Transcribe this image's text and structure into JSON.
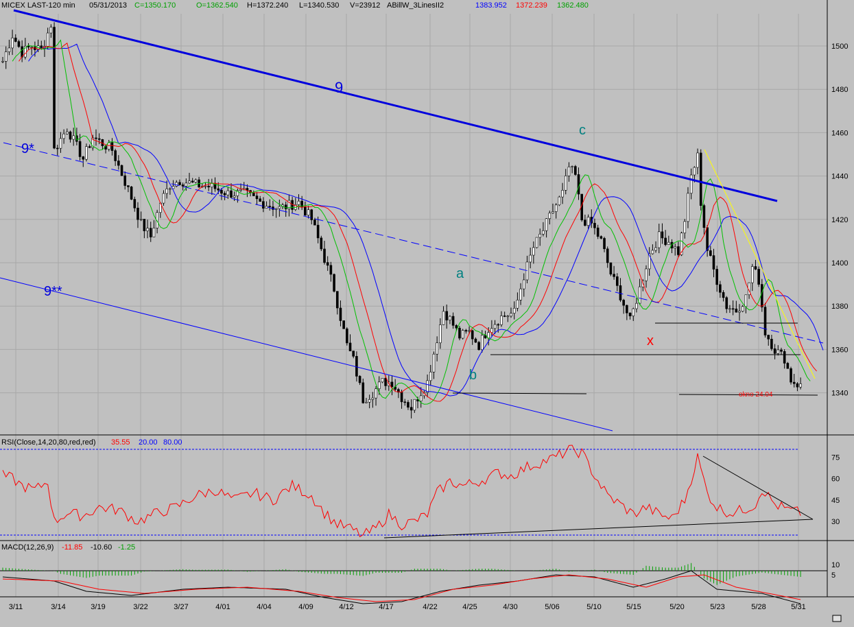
{
  "header": {
    "symbol": "MICEX LAST-120 min",
    "date": "05/31/2013",
    "close": "C=1350.170",
    "open": "O=1362.540",
    "high": "H=1372.240",
    "low": "L=1340.530",
    "volume": "V=23912",
    "indicator": "ABillW_3LinesII2",
    "line_blue": "1383.952",
    "line_red": "1372.239",
    "line_green": "1362.480"
  },
  "rsi_header": {
    "label": "RSI(Close,14,20,80,red,red)",
    "value": "35.55",
    "low": "20.00",
    "high": "80.00"
  },
  "macd_header": {
    "label": "MACD(12,26,9)",
    "macd": "-11.85",
    "signal": "-10.60",
    "hist": "-1.25"
  },
  "annotations": {
    "l9": "9",
    "l9s": "9*",
    "l9ss": "9**",
    "a": "a",
    "b": "b",
    "c": "c",
    "x": "x",
    "okno": "okno 24.04"
  },
  "colors": {
    "background": "#c0c0c0",
    "candles": "#000000",
    "line_blue": "#0000ff",
    "line_red": "#ff0000",
    "line_green": "#00c000",
    "rsi": "#ff0000",
    "grid": "#9a9a9a",
    "trend_main": "#0000dd",
    "yellow_trend": "#ffff00",
    "label_teal": "#008080"
  },
  "chart_data": [
    {
      "type": "candlestick",
      "title": "MICEX LAST-120 min",
      "ylim": [
        1320,
        1512
      ],
      "y_ticks": [
        1340,
        1360,
        1380,
        1400,
        1420,
        1440,
        1460,
        1480,
        1500
      ],
      "x_ticks": [
        "3/11",
        "3/14",
        "3/19",
        "3/22",
        "3/27",
        "4/01",
        "4/04",
        "4/09",
        "4/12",
        "4/17",
        "4/22",
        "4/25",
        "4/30",
        "5/06",
        "5/10",
        "5/15",
        "5/20",
        "5/23",
        "5/28",
        "5/31"
      ],
      "close_path": [
        [
          0,
          1493
        ],
        [
          3,
          1505
        ],
        [
          6,
          1497
        ],
        [
          9,
          1500
        ],
        [
          12,
          1498
        ],
        [
          15,
          1510
        ],
        [
          16,
          1452
        ],
        [
          20,
          1462
        ],
        [
          25,
          1448
        ],
        [
          28,
          1458
        ],
        [
          34,
          1452
        ],
        [
          40,
          1430
        ],
        [
          43,
          1418
        ],
        [
          46,
          1412
        ],
        [
          49,
          1428
        ],
        [
          52,
          1436
        ],
        [
          55,
          1438
        ],
        [
          60,
          1436
        ],
        [
          65,
          1435
        ],
        [
          70,
          1432
        ],
        [
          75,
          1432
        ],
        [
          80,
          1428
        ],
        [
          86,
          1425
        ],
        [
          92,
          1428
        ],
        [
          96,
          1420
        ],
        [
          100,
          1402
        ],
        [
          103,
          1388
        ],
        [
          107,
          1362
        ],
        [
          109,
          1355
        ],
        [
          112,
          1337
        ],
        [
          115,
          1340
        ],
        [
          118,
          1345
        ],
        [
          121,
          1345
        ],
        [
          124,
          1338
        ],
        [
          127,
          1333
        ],
        [
          129,
          1338
        ],
        [
          132,
          1345
        ],
        [
          135,
          1365
        ],
        [
          137,
          1378
        ],
        [
          139,
          1374
        ],
        [
          142,
          1366
        ],
        [
          145,
          1368
        ],
        [
          148,
          1362
        ],
        [
          151,
          1370
        ],
        [
          155,
          1375
        ],
        [
          159,
          1377
        ],
        [
          162,
          1394
        ],
        [
          165,
          1407
        ],
        [
          168,
          1415
        ],
        [
          171,
          1424
        ],
        [
          174,
          1432
        ],
        [
          176,
          1444
        ],
        [
          178,
          1440
        ],
        [
          180,
          1420
        ],
        [
          183,
          1418
        ],
        [
          186,
          1410
        ],
        [
          189,
          1395
        ],
        [
          192,
          1385
        ],
        [
          195,
          1373
        ],
        [
          198,
          1388
        ],
        [
          201,
          1404
        ],
        [
          204,
          1412
        ],
        [
          207,
          1410
        ],
        [
          210,
          1405
        ],
        [
          212,
          1420
        ],
        [
          214,
          1440
        ],
        [
          216,
          1449
        ],
        [
          217,
          1428
        ],
        [
          219,
          1406
        ],
        [
          222,
          1392
        ],
        [
          225,
          1380
        ],
        [
          228,
          1378
        ],
        [
          231,
          1384
        ],
        [
          233,
          1398
        ],
        [
          235,
          1392
        ],
        [
          237,
          1368
        ],
        [
          240,
          1360
        ],
        [
          243,
          1356
        ],
        [
          245,
          1346
        ],
        [
          248,
          1343
        ]
      ],
      "lows": [
        {
          "date": "4/22",
          "value": 1325
        }
      ],
      "highs": [
        {
          "date": "5/22",
          "value": 1453
        }
      ],
      "series": [
        {
          "name": "line_blue",
          "color": "#0000ff",
          "last": 1383.952
        },
        {
          "name": "line_red",
          "color": "#ff0000",
          "last": 1372.239
        },
        {
          "name": "line_green",
          "color": "#00c000",
          "last": 1362.48
        }
      ]
    },
    {
      "type": "line",
      "title": "RSI(Close,14,20,80,red,red)",
      "ylim": [
        15,
        85
      ],
      "y_ticks": [
        30,
        45,
        60,
        75
      ],
      "levels": [
        20,
        80
      ],
      "path": [
        [
          0,
          62
        ],
        [
          3,
          60
        ],
        [
          6,
          55
        ],
        [
          10,
          52
        ],
        [
          14,
          58
        ],
        [
          16,
          30
        ],
        [
          20,
          36
        ],
        [
          25,
          34
        ],
        [
          30,
          40
        ],
        [
          36,
          38
        ],
        [
          42,
          30
        ],
        [
          48,
          36
        ],
        [
          54,
          40
        ],
        [
          60,
          48
        ],
        [
          66,
          52
        ],
        [
          72,
          45
        ],
        [
          78,
          50
        ],
        [
          84,
          45
        ],
        [
          90,
          55
        ],
        [
          96,
          48
        ],
        [
          100,
          36
        ],
        [
          104,
          28
        ],
        [
          108,
          25
        ],
        [
          112,
          20
        ],
        [
          116,
          25
        ],
        [
          120,
          35
        ],
        [
          124,
          28
        ],
        [
          128,
          30
        ],
        [
          132,
          35
        ],
        [
          135,
          50
        ],
        [
          139,
          58
        ],
        [
          143,
          55
        ],
        [
          148,
          58
        ],
        [
          154,
          64
        ],
        [
          158,
          62
        ],
        [
          163,
          68
        ],
        [
          168,
          72
        ],
        [
          172,
          75
        ],
        [
          176,
          80
        ],
        [
          180,
          78
        ],
        [
          184,
          62
        ],
        [
          188,
          48
        ],
        [
          192,
          42
        ],
        [
          196,
          35
        ],
        [
          200,
          40
        ],
        [
          204,
          35
        ],
        [
          208,
          32
        ],
        [
          212,
          45
        ],
        [
          216,
          75
        ],
        [
          219,
          50
        ],
        [
          222,
          40
        ],
        [
          226,
          36
        ],
        [
          230,
          38
        ],
        [
          234,
          42
        ],
        [
          236,
          53
        ],
        [
          240,
          42
        ],
        [
          244,
          38
        ],
        [
          248,
          36
        ]
      ],
      "last": 35.55
    },
    {
      "type": "line",
      "title": "MACD(12,26,9)",
      "ylim": [
        -10,
        17
      ],
      "y_ticks": [
        10,
        5
      ],
      "macd_path": [
        [
          0,
          4
        ],
        [
          16,
          2
        ],
        [
          26,
          -3
        ],
        [
          40,
          -5
        ],
        [
          56,
          -2
        ],
        [
          70,
          -1
        ],
        [
          88,
          -2
        ],
        [
          100,
          -6
        ],
        [
          112,
          -9
        ],
        [
          124,
          -8
        ],
        [
          136,
          -3
        ],
        [
          148,
          0
        ],
        [
          160,
          2
        ],
        [
          172,
          5
        ],
        [
          184,
          4
        ],
        [
          196,
          -1
        ],
        [
          206,
          3
        ],
        [
          214,
          7
        ],
        [
          222,
          -2
        ],
        [
          236,
          -4
        ],
        [
          248,
          -9
        ]
      ],
      "signal_path": [
        [
          0,
          3
        ],
        [
          18,
          2
        ],
        [
          30,
          -2
        ],
        [
          44,
          -4
        ],
        [
          60,
          -2
        ],
        [
          76,
          -1
        ],
        [
          92,
          -3
        ],
        [
          104,
          -6
        ],
        [
          116,
          -8
        ],
        [
          128,
          -7
        ],
        [
          140,
          -2
        ],
        [
          152,
          0
        ],
        [
          164,
          3
        ],
        [
          176,
          5
        ],
        [
          188,
          3
        ],
        [
          200,
          -1
        ],
        [
          210,
          4
        ],
        [
          218,
          5
        ],
        [
          228,
          -1
        ],
        [
          238,
          -4
        ],
        [
          248,
          -7
        ]
      ],
      "last": {
        "macd": -11.85,
        "signal": -10.6,
        "hist": -1.25
      }
    }
  ]
}
